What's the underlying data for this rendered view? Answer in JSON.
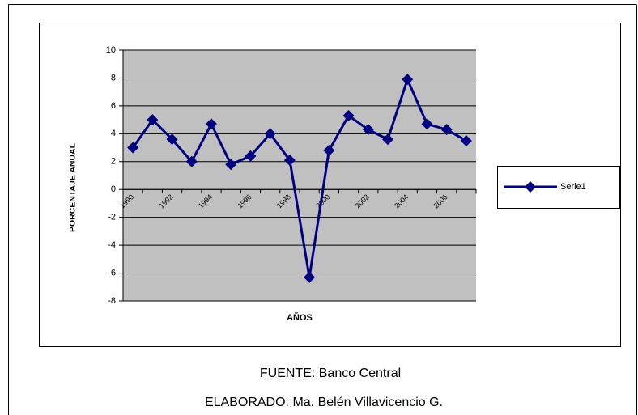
{
  "chart_data": {
    "type": "line",
    "categories": [
      "1990",
      null,
      "1992",
      null,
      "1994",
      null,
      "1996",
      null,
      "1998",
      null,
      "2000",
      null,
      "2002",
      null,
      "2004",
      null,
      "2006",
      null
    ],
    "series": [
      {
        "name": "Serie1",
        "color": "#000080",
        "values": [
          3.0,
          5.0,
          3.6,
          2.0,
          4.7,
          1.8,
          2.4,
          4.0,
          2.1,
          -6.3,
          2.8,
          5.3,
          4.3,
          3.6,
          7.9,
          4.7,
          4.3,
          3.5
        ]
      }
    ],
    "ylim": [
      -8,
      10
    ],
    "yticks": [
      -8,
      -6,
      -4,
      -2,
      0,
      2,
      4,
      6,
      8,
      10
    ],
    "x_label": "AÑOS",
    "y_label": "PORCENTAJE ANUAL",
    "grid": true,
    "legend": "right"
  },
  "footer": {
    "source": "FUENTE: Banco Central",
    "credit": "ELABORADO: Ma. Belén Villavicencio G."
  }
}
